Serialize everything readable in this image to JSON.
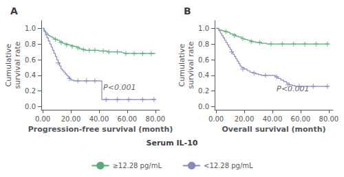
{
  "chart_data": [
    {
      "type": "line",
      "title": "A",
      "x_label": "Progression-free survival (month)",
      "y_label": "Cumulative\nsurvival rate",
      "xlim": [
        -1,
        83
      ],
      "ylim": [
        -0.04,
        1.1
      ],
      "xticks": [
        {
          "value": 0,
          "label": "0.00"
        },
        {
          "value": 20,
          "label": "20.00"
        },
        {
          "value": 40,
          "label": "40.00"
        },
        {
          "value": 60,
          "label": "60.00"
        },
        {
          "value": 80,
          "label": "80.00"
        }
      ],
      "yticks": [
        {
          "value": 0.0,
          "label": "0.0"
        },
        0.2,
        0.4,
        0.6,
        0.8,
        {
          "value": 1.0,
          "label": "1.0"
        }
      ],
      "grid": false,
      "legend_title": "Serum IL-10",
      "annotations": [
        {
          "text": "P<0.001",
          "x": 43,
          "y": 0.2
        }
      ],
      "series": [
        {
          "name": "≥12.28 pg/mL",
          "color": "#5aaa78",
          "line_style": "step",
          "marker": "plus",
          "x": [
            0,
            1,
            2,
            3,
            4,
            5,
            6,
            7,
            8,
            9,
            10,
            12,
            14,
            16,
            18,
            20,
            22,
            24,
            26,
            28,
            30,
            32,
            34,
            36,
            38,
            40,
            42,
            44,
            46,
            48,
            50,
            52,
            54,
            56,
            58,
            60,
            62,
            64,
            66,
            68,
            70,
            72,
            74,
            76,
            78,
            80
          ],
          "values": [
            1.0,
            0.97,
            0.95,
            0.93,
            0.91,
            0.9,
            0.89,
            0.88,
            0.87,
            0.86,
            0.85,
            0.83,
            0.81,
            0.8,
            0.79,
            0.78,
            0.77,
            0.76,
            0.74,
            0.73,
            0.72,
            0.72,
            0.72,
            0.72,
            0.72,
            0.71,
            0.71,
            0.71,
            0.7,
            0.7,
            0.7,
            0.7,
            0.7,
            0.69,
            0.68,
            0.68,
            0.68,
            0.68,
            0.68,
            0.68,
            0.68,
            0.68,
            0.68,
            0.68,
            0.68,
            0.68
          ],
          "censor_x": [
            9,
            13,
            17,
            21,
            25,
            29,
            33,
            37,
            43,
            47,
            53,
            59,
            65,
            71,
            77
          ],
          "censor_values": [
            0.86,
            0.82,
            0.79,
            0.77,
            0.75,
            0.73,
            0.72,
            0.72,
            0.71,
            0.7,
            0.7,
            0.68,
            0.68,
            0.68,
            0.68
          ]
        },
        {
          "name": "<12.28 pg/mL",
          "color": "#8888bb",
          "line_style": "step",
          "marker": "plus",
          "x": [
            0,
            1,
            2,
            3,
            4,
            5,
            6,
            7,
            8,
            9,
            10,
            11,
            12,
            13,
            14,
            15,
            16,
            17,
            18,
            19,
            20,
            22,
            24,
            26,
            28,
            30,
            32,
            34,
            36,
            38,
            40,
            42,
            44,
            46,
            48,
            50,
            52,
            54,
            56,
            58,
            60,
            62,
            64,
            66,
            68,
            70,
            72,
            74,
            76,
            78,
            80
          ],
          "values": [
            1.0,
            0.96,
            0.92,
            0.88,
            0.84,
            0.8,
            0.76,
            0.72,
            0.68,
            0.64,
            0.6,
            0.56,
            0.52,
            0.48,
            0.46,
            0.44,
            0.42,
            0.4,
            0.38,
            0.36,
            0.34,
            0.33,
            0.33,
            0.33,
            0.33,
            0.33,
            0.33,
            0.33,
            0.33,
            0.33,
            0.33,
            0.09,
            0.09,
            0.09,
            0.09,
            0.09,
            0.09,
            0.09,
            0.09,
            0.09,
            0.09,
            0.09,
            0.09,
            0.09,
            0.09,
            0.09,
            0.09,
            0.09,
            0.09,
            0.09,
            0.09
          ],
          "censor_x": [
            11,
            19,
            25,
            31,
            37,
            45,
            53,
            61,
            71,
            79
          ],
          "censor_values": [
            0.56,
            0.36,
            0.33,
            0.33,
            0.33,
            0.09,
            0.09,
            0.09,
            0.09,
            0.09
          ]
        }
      ]
    },
    {
      "type": "line",
      "title": "B",
      "x_label": "Overall survival (month)",
      "y_label": "Cumulative\nsurvival rate",
      "xlim": [
        -1,
        83
      ],
      "ylim": [
        -0.04,
        1.1
      ],
      "xticks": [
        {
          "value": 0,
          "label": "0.00"
        },
        {
          "value": 20,
          "label": "20.00"
        },
        {
          "value": 40,
          "label": "40.00"
        },
        {
          "value": 60,
          "label": "60.00"
        },
        {
          "value": 80,
          "label": "80.00"
        }
      ],
      "yticks": [
        {
          "value": 0.0,
          "label": "0.0"
        },
        0.2,
        0.4,
        0.6,
        0.8,
        {
          "value": 1.0,
          "label": "1.0"
        }
      ],
      "grid": false,
      "annotations": [
        {
          "text": "P<0.001",
          "x": 43,
          "y": 0.18
        }
      ],
      "series": [
        {
          "name": "≥12.28 pg/mL",
          "color": "#5aaa78",
          "line_style": "step",
          "marker": "plus",
          "x": [
            0,
            2,
            4,
            6,
            8,
            10,
            12,
            14,
            16,
            18,
            20,
            22,
            24,
            26,
            28,
            30,
            32,
            34,
            36,
            38,
            40,
            42,
            44,
            46,
            48,
            50,
            52,
            54,
            56,
            58,
            60,
            62,
            64,
            66,
            68,
            70,
            72,
            74,
            76,
            78,
            80
          ],
          "values": [
            1.0,
            0.98,
            0.97,
            0.96,
            0.95,
            0.93,
            0.92,
            0.9,
            0.89,
            0.87,
            0.86,
            0.85,
            0.84,
            0.83,
            0.82,
            0.82,
            0.81,
            0.81,
            0.8,
            0.8,
            0.8,
            0.8,
            0.8,
            0.8,
            0.8,
            0.8,
            0.8,
            0.8,
            0.8,
            0.8,
            0.8,
            0.8,
            0.8,
            0.8,
            0.8,
            0.8,
            0.8,
            0.8,
            0.8,
            0.8,
            0.8
          ],
          "censor_x": [
            7,
            13,
            19,
            25,
            31,
            39,
            47,
            55,
            63,
            71,
            79
          ],
          "censor_values": [
            0.96,
            0.91,
            0.87,
            0.83,
            0.82,
            0.8,
            0.8,
            0.8,
            0.8,
            0.8,
            0.8
          ]
        },
        {
          "name": "<12.28 pg/mL",
          "color": "#8888bb",
          "line_style": "step",
          "marker": "plus",
          "x": [
            0,
            2,
            3,
            4,
            5,
            6,
            7,
            8,
            9,
            10,
            11,
            12,
            13,
            14,
            15,
            16,
            17,
            18,
            20,
            22,
            24,
            26,
            28,
            30,
            32,
            34,
            36,
            38,
            40,
            42,
            44,
            46,
            48,
            50,
            52,
            54,
            56,
            58,
            60,
            62,
            64,
            66,
            68,
            70,
            72,
            74,
            76,
            78,
            80
          ],
          "values": [
            1.0,
            0.97,
            0.94,
            0.91,
            0.88,
            0.85,
            0.82,
            0.79,
            0.76,
            0.73,
            0.7,
            0.67,
            0.64,
            0.61,
            0.58,
            0.55,
            0.52,
            0.5,
            0.48,
            0.46,
            0.44,
            0.43,
            0.42,
            0.41,
            0.4,
            0.4,
            0.4,
            0.4,
            0.4,
            0.38,
            0.36,
            0.34,
            0.32,
            0.3,
            0.28,
            0.27,
            0.26,
            0.26,
            0.26,
            0.26,
            0.26,
            0.26,
            0.26,
            0.26,
            0.26,
            0.26,
            0.26,
            0.26,
            0.26
          ],
          "censor_x": [
            11,
            19,
            27,
            35,
            43,
            51,
            59,
            69,
            79
          ],
          "censor_values": [
            0.7,
            0.48,
            0.43,
            0.4,
            0.38,
            0.28,
            0.26,
            0.26,
            0.26
          ]
        }
      ]
    }
  ]
}
